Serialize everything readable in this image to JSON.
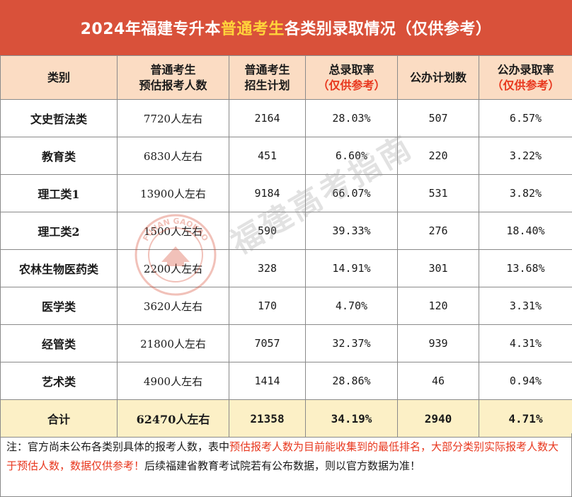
{
  "title": {
    "part1": "2024年福建专升本",
    "highlight": "普通考生",
    "part2": "各类别录取情况（仅供参考）"
  },
  "header": {
    "col1": "类别",
    "col2_line1": "普通考生",
    "col2_line2": "预估报考人数",
    "col3_line1": "普通考生",
    "col3_line2": "招生计划",
    "col4_line1": "总录取率",
    "col4_line2": "（仅供参考）",
    "col5": "公办计划数",
    "col6_line1": "公办录取率",
    "col6_line2": "（仅供参考）"
  },
  "rows": [
    {
      "category": "文史哲法类",
      "applicants": "7720人左右",
      "plan": "2164",
      "rate": "28.03%",
      "public_plan": "507",
      "public_rate": "6.57%"
    },
    {
      "category": "教育类",
      "applicants": "6830人左右",
      "plan": "451",
      "rate": "6.60%",
      "public_plan": "220",
      "public_rate": "3.22%"
    },
    {
      "category": "理工类1",
      "applicants": "13900人左右",
      "plan": "9184",
      "rate": "66.07%",
      "public_plan": "531",
      "public_rate": "3.82%"
    },
    {
      "category": "理工类2",
      "applicants": "1500人左右",
      "plan": "590",
      "rate": "39.33%",
      "public_plan": "276",
      "public_rate": "18.40%"
    },
    {
      "category": "农林生物医药类",
      "applicants": "2200人左右",
      "plan": "328",
      "rate": "14.91%",
      "public_plan": "301",
      "public_rate": "13.68%"
    },
    {
      "category": "医学类",
      "applicants": "3620人左右",
      "plan": "170",
      "rate": "4.70%",
      "public_plan": "120",
      "public_rate": "3.31%"
    },
    {
      "category": "经管类",
      "applicants": "21800人左右",
      "plan": "7057",
      "rate": "32.37%",
      "public_plan": "939",
      "public_rate": "4.31%"
    },
    {
      "category": "艺术类",
      "applicants": "4900人左右",
      "plan": "1414",
      "rate": "28.86%",
      "public_plan": "46",
      "public_rate": "0.94%"
    }
  ],
  "total": {
    "category": "合计",
    "applicants": "62470人左右",
    "plan": "21358",
    "rate": "34.19%",
    "public_plan": "2940",
    "public_rate": "4.71%"
  },
  "note": {
    "part1": "注：官方尚未公布各类别具体的报考人数，表中",
    "red": "预估报考人数为目前能收集到的最低排名，大部分类别实际报考人数大于预估人数，数据仅供参考！",
    "part2": "后续福建省教育考试院若有公布数据，则以官方数据为准！"
  },
  "watermark": {
    "text": "福建高考指南",
    "seal_text": "FUJIAN GAOKAO"
  },
  "colors": {
    "banner": "#d9513a",
    "highlight": "#ffd43b",
    "header_bg": "#fbdcc3",
    "total_bg": "#fcf0c6",
    "accent_red": "#e8371e"
  }
}
